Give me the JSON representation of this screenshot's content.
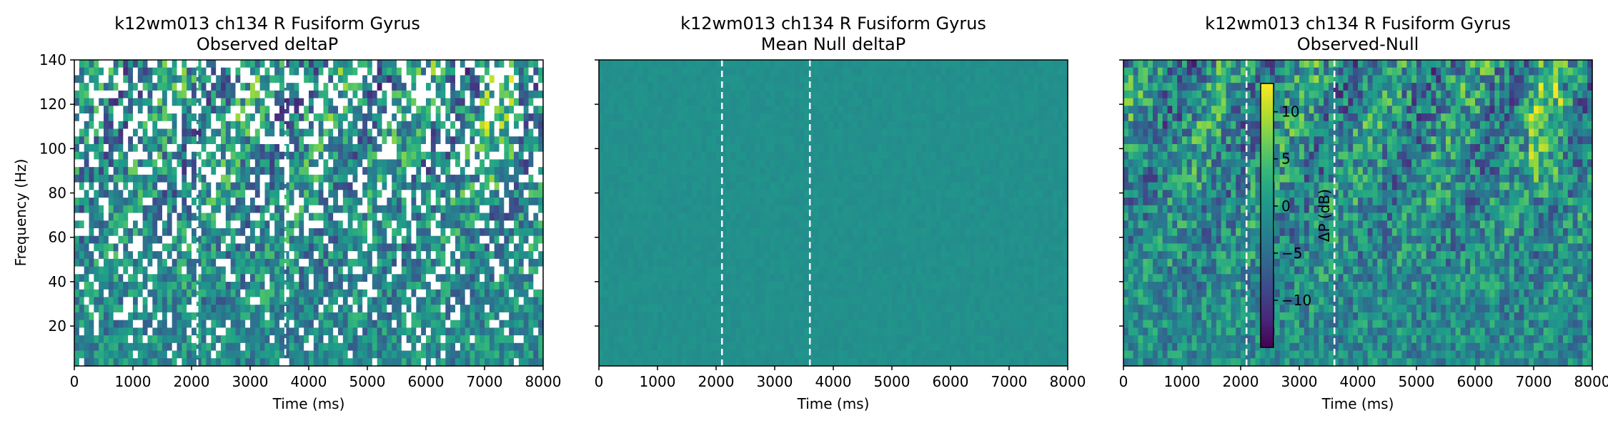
{
  "chart_data": [
    {
      "type": "heatmap",
      "title": "k12wm013 ch134 R Fusiform Gyrus",
      "subtitle": "Observed deltaP",
      "xlabel": "Time (ms)",
      "ylabel": "Frequency (Hz)",
      "xlim": [
        0,
        8000
      ],
      "ylim": [
        2,
        140
      ],
      "xticks": [
        "0",
        "1000",
        "2000",
        "3000",
        "4000",
        "5000",
        "6000",
        "7000",
        "8000"
      ],
      "yticks": [
        "20",
        "40",
        "60",
        "80",
        "100",
        "120",
        "140"
      ],
      "vlines_ms": [
        2100,
        3600
      ],
      "masked_white_cells": true,
      "value_range_db": [
        -15,
        13
      ],
      "colormap": "viridis"
    },
    {
      "type": "heatmap",
      "title": "k12wm013 ch134 R Fusiform Gyrus",
      "subtitle": "Mean Null deltaP",
      "xlabel": "Time (ms)",
      "ylabel": "",
      "xlim": [
        0,
        8000
      ],
      "ylim": [
        2,
        140
      ],
      "xticks": [
        "0",
        "1000",
        "2000",
        "3000",
        "4000",
        "5000",
        "6000",
        "7000",
        "8000"
      ],
      "yticks": [],
      "vlines_ms": [
        2100,
        3600
      ],
      "masked_white_cells": false,
      "value_range_db": [
        -1,
        1
      ],
      "colormap": "viridis"
    },
    {
      "type": "heatmap",
      "title": "k12wm013 ch134 R Fusiform Gyrus",
      "subtitle": "Observed-Null",
      "xlabel": "Time (ms)",
      "ylabel": "",
      "xlim": [
        0,
        8000
      ],
      "ylim": [
        2,
        140
      ],
      "xticks": [
        "0",
        "1000",
        "2000",
        "3000",
        "4000",
        "5000",
        "6000",
        "7000",
        "8000"
      ],
      "yticks": [],
      "vlines_ms": [
        2100,
        3600
      ],
      "masked_white_cells": false,
      "value_range_db": [
        -15,
        13
      ],
      "colormap": "viridis",
      "colorbar": {
        "label": "ΔP (dB)",
        "range": [
          -15,
          13
        ],
        "ticks": [
          -10,
          -5,
          0,
          5,
          10
        ],
        "tick_labels": [
          "−10",
          "−5",
          "0",
          "5",
          "10"
        ]
      }
    }
  ],
  "colors": {
    "viridis": [
      "#440154",
      "#482878",
      "#3e4989",
      "#31688e",
      "#26828e",
      "#1f9e89",
      "#35b779",
      "#6ece58",
      "#b5de2b",
      "#fde725"
    ],
    "vline": "#ffffff",
    "mask": "#ffffff",
    "axes": "#000000"
  }
}
